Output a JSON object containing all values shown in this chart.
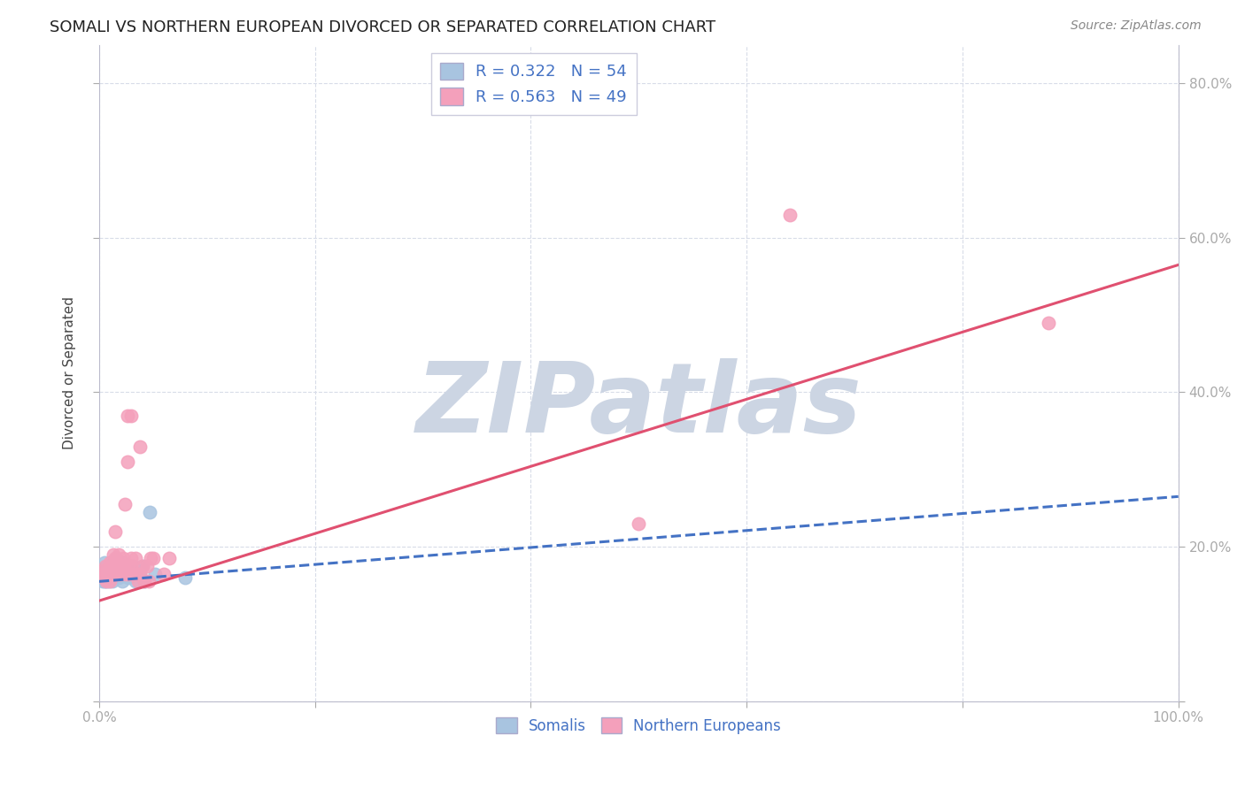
{
  "title": "SOMALI VS NORTHERN EUROPEAN DIVORCED OR SEPARATED CORRELATION CHART",
  "source": "Source: ZipAtlas.com",
  "ylabel": "Divorced or Separated",
  "watermark": "ZIPatlas",
  "xlim": [
    0,
    1.0
  ],
  "ylim": [
    0,
    0.85
  ],
  "legend_somali_R": "0.322",
  "legend_somali_N": "54",
  "legend_ne_R": "0.563",
  "legend_ne_N": "49",
  "somali_color": "#a8c4e0",
  "ne_color": "#f4a0bb",
  "somali_line_color": "#4472c4",
  "ne_line_color": "#e05070",
  "title_fontsize": 13,
  "source_fontsize": 10,
  "axis_label_color": "#4472c4",
  "grid_color": "#d8dce8",
  "background_color": "#ffffff",
  "watermark_color": "#ccd5e3",
  "somali_points": [
    [
      0.002,
      0.16
    ],
    [
      0.003,
      0.155
    ],
    [
      0.004,
      0.17
    ],
    [
      0.005,
      0.155
    ],
    [
      0.005,
      0.18
    ],
    [
      0.006,
      0.165
    ],
    [
      0.006,
      0.16
    ],
    [
      0.007,
      0.17
    ],
    [
      0.007,
      0.155
    ],
    [
      0.008,
      0.175
    ],
    [
      0.008,
      0.16
    ],
    [
      0.009,
      0.165
    ],
    [
      0.009,
      0.155
    ],
    [
      0.01,
      0.17
    ],
    [
      0.01,
      0.165
    ],
    [
      0.011,
      0.175
    ],
    [
      0.011,
      0.16
    ],
    [
      0.012,
      0.17
    ],
    [
      0.012,
      0.155
    ],
    [
      0.013,
      0.165
    ],
    [
      0.013,
      0.18
    ],
    [
      0.014,
      0.17
    ],
    [
      0.014,
      0.175
    ],
    [
      0.015,
      0.165
    ],
    [
      0.015,
      0.16
    ],
    [
      0.016,
      0.175
    ],
    [
      0.016,
      0.185
    ],
    [
      0.017,
      0.17
    ],
    [
      0.017,
      0.165
    ],
    [
      0.018,
      0.18
    ],
    [
      0.018,
      0.16
    ],
    [
      0.019,
      0.175
    ],
    [
      0.02,
      0.165
    ],
    [
      0.02,
      0.17
    ],
    [
      0.021,
      0.155
    ],
    [
      0.022,
      0.18
    ],
    [
      0.023,
      0.17
    ],
    [
      0.024,
      0.175
    ],
    [
      0.025,
      0.165
    ],
    [
      0.026,
      0.17
    ],
    [
      0.027,
      0.16
    ],
    [
      0.028,
      0.175
    ],
    [
      0.029,
      0.165
    ],
    [
      0.03,
      0.17
    ],
    [
      0.031,
      0.175
    ],
    [
      0.032,
      0.165
    ],
    [
      0.033,
      0.17
    ],
    [
      0.034,
      0.155
    ],
    [
      0.038,
      0.165
    ],
    [
      0.04,
      0.175
    ],
    [
      0.042,
      0.155
    ],
    [
      0.047,
      0.245
    ],
    [
      0.052,
      0.165
    ],
    [
      0.08,
      0.16
    ]
  ],
  "ne_points": [
    [
      0.003,
      0.165
    ],
    [
      0.004,
      0.16
    ],
    [
      0.005,
      0.17
    ],
    [
      0.006,
      0.175
    ],
    [
      0.007,
      0.155
    ],
    [
      0.008,
      0.165
    ],
    [
      0.009,
      0.17
    ],
    [
      0.01,
      0.155
    ],
    [
      0.01,
      0.18
    ],
    [
      0.011,
      0.175
    ],
    [
      0.012,
      0.165
    ],
    [
      0.013,
      0.19
    ],
    [
      0.014,
      0.175
    ],
    [
      0.015,
      0.22
    ],
    [
      0.015,
      0.185
    ],
    [
      0.016,
      0.175
    ],
    [
      0.017,
      0.165
    ],
    [
      0.018,
      0.19
    ],
    [
      0.019,
      0.175
    ],
    [
      0.02,
      0.165
    ],
    [
      0.021,
      0.175
    ],
    [
      0.022,
      0.185
    ],
    [
      0.023,
      0.175
    ],
    [
      0.024,
      0.255
    ],
    [
      0.025,
      0.165
    ],
    [
      0.026,
      0.31
    ],
    [
      0.027,
      0.175
    ],
    [
      0.028,
      0.165
    ],
    [
      0.03,
      0.175
    ],
    [
      0.03,
      0.185
    ],
    [
      0.032,
      0.165
    ],
    [
      0.034,
      0.185
    ],
    [
      0.035,
      0.165
    ],
    [
      0.036,
      0.155
    ],
    [
      0.038,
      0.165
    ],
    [
      0.04,
      0.175
    ],
    [
      0.042,
      0.155
    ],
    [
      0.044,
      0.175
    ],
    [
      0.046,
      0.155
    ],
    [
      0.048,
      0.185
    ],
    [
      0.05,
      0.185
    ],
    [
      0.06,
      0.165
    ],
    [
      0.065,
      0.185
    ],
    [
      0.026,
      0.37
    ],
    [
      0.03,
      0.37
    ],
    [
      0.038,
      0.33
    ],
    [
      0.5,
      0.23
    ],
    [
      0.64,
      0.63
    ],
    [
      0.88,
      0.49
    ]
  ],
  "somali_trend_x": [
    0.0,
    1.0
  ],
  "somali_trend_y": [
    0.155,
    0.265
  ],
  "ne_trend_x": [
    0.0,
    1.0
  ],
  "ne_trend_y": [
    0.13,
    0.565
  ]
}
